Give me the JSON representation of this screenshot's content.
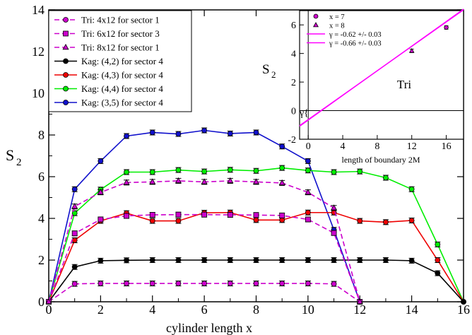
{
  "chart_data": [
    {
      "type": "line",
      "xlabel": "cylinder length x",
      "ylabel": "S",
      "ylabel_sub": "2",
      "xlim": [
        0,
        16
      ],
      "ylim": [
        0,
        14
      ],
      "xticks": [
        0,
        2,
        4,
        6,
        8,
        10,
        12,
        14,
        16
      ],
      "yticks": [
        0,
        2,
        4,
        6,
        8,
        10,
        12,
        14
      ],
      "legend_position": "top-left",
      "series": [
        {
          "name": "Tri: 4x12 for sector 1",
          "color": "#cc00cc",
          "marker": "circle",
          "dashed": true,
          "x": [
            0,
            1,
            2,
            3,
            4,
            5,
            6,
            7,
            8,
            9,
            10,
            11,
            12
          ],
          "y": [
            0,
            0.86,
            0.88,
            0.88,
            0.88,
            0.88,
            0.88,
            0.88,
            0.88,
            0.88,
            0.88,
            0.86,
            0
          ]
        },
        {
          "name": "Tri: 6x12 for sector 3",
          "color": "#cc00cc",
          "marker": "square",
          "dashed": true,
          "x": [
            0,
            1,
            2,
            3,
            4,
            5,
            6,
            7,
            8,
            9,
            10,
            11,
            12
          ],
          "y": [
            0,
            3.28,
            3.95,
            4.12,
            4.17,
            4.18,
            4.18,
            4.17,
            4.16,
            4.14,
            3.95,
            3.3,
            0
          ]
        },
        {
          "name": "Tri: 8x12 for sector 1",
          "color": "#cc00cc",
          "marker": "triangle",
          "dashed": true,
          "x": [
            0,
            1,
            2,
            3,
            4,
            5,
            6,
            7,
            8,
            9,
            10,
            11,
            12
          ],
          "y": [
            0,
            4.57,
            5.25,
            5.72,
            5.75,
            5.8,
            5.75,
            5.8,
            5.75,
            5.7,
            5.25,
            4.5,
            0
          ]
        },
        {
          "name": "Kag: (4,2) for sector 4",
          "color": "#000000",
          "marker": "circle",
          "dashed": false,
          "x": [
            0,
            1,
            2,
            3,
            4,
            5,
            6,
            7,
            8,
            9,
            10,
            11,
            12,
            13,
            14,
            15,
            16
          ],
          "y": [
            0,
            1.67,
            1.97,
            1.99,
            2.0,
            2.0,
            2.0,
            2.0,
            2.0,
            2.0,
            2.0,
            2.0,
            2.0,
            2.0,
            1.97,
            1.37,
            0
          ]
        },
        {
          "name": "Kag: (4,3) for sector 4",
          "color": "#ee0000",
          "marker": "circle",
          "dashed": false,
          "x": [
            0,
            1,
            2,
            3,
            4,
            5,
            6,
            7,
            8,
            9,
            10,
            11,
            12,
            13,
            14,
            15,
            16
          ],
          "y": [
            0,
            2.95,
            3.88,
            4.25,
            3.88,
            3.88,
            4.27,
            4.28,
            3.92,
            3.92,
            4.28,
            4.28,
            3.88,
            3.82,
            3.9,
            2.0,
            0
          ]
        },
        {
          "name": "Kag: (4,4) for sector 4",
          "color": "#00ee00",
          "marker": "circle",
          "dashed": false,
          "x": [
            0,
            1,
            2,
            3,
            4,
            5,
            6,
            7,
            8,
            9,
            10,
            11,
            12,
            13,
            14,
            15,
            16
          ],
          "y": [
            0,
            4.25,
            5.38,
            6.22,
            6.22,
            6.32,
            6.25,
            6.33,
            6.28,
            6.42,
            6.3,
            6.22,
            6.25,
            5.95,
            5.4,
            2.75,
            0
          ]
        },
        {
          "name": "Kag: (3,5) for sector 4",
          "color": "#1010cc",
          "marker": "circle",
          "dashed": false,
          "x": [
            0,
            1,
            2,
            3,
            4,
            5,
            6,
            7,
            8,
            9,
            10,
            11,
            12
          ],
          "y": [
            0,
            5.4,
            6.75,
            7.95,
            8.12,
            8.05,
            8.22,
            8.07,
            8.12,
            7.45,
            6.75,
            3.45,
            0
          ]
        }
      ]
    },
    {
      "type": "line",
      "label": "Tri",
      "xlabel": "length of boundary 2M",
      "ylabel": "S",
      "ylabel_sub": "2",
      "gamma_marker": "γ{",
      "xlim": [
        -1,
        18
      ],
      "ylim": [
        -2,
        7
      ],
      "xticks": [
        0,
        4,
        8,
        12,
        16
      ],
      "yticks": [
        -2,
        0,
        2,
        4,
        6
      ],
      "legend_position": "top-left",
      "series": [
        {
          "name": "x = 7",
          "color": "#cc00cc",
          "marker": "circle",
          "x": [
            16
          ],
          "y": [
            5.82
          ]
        },
        {
          "name": "x = 8",
          "color": "#cc00cc",
          "marker": "triangle",
          "x": [
            12
          ],
          "y": [
            4.18
          ]
        },
        {
          "name": "γ = -0.62 +/- 0.03",
          "color": "#ff00ff",
          "marker": "none",
          "fit": [
            0.4263,
            -0.62
          ]
        },
        {
          "name": "γ = -0.66 +/- 0.03",
          "color": "#ff00ff",
          "marker": "none",
          "fit": [
            0.4313,
            -0.66
          ]
        }
      ]
    }
  ]
}
